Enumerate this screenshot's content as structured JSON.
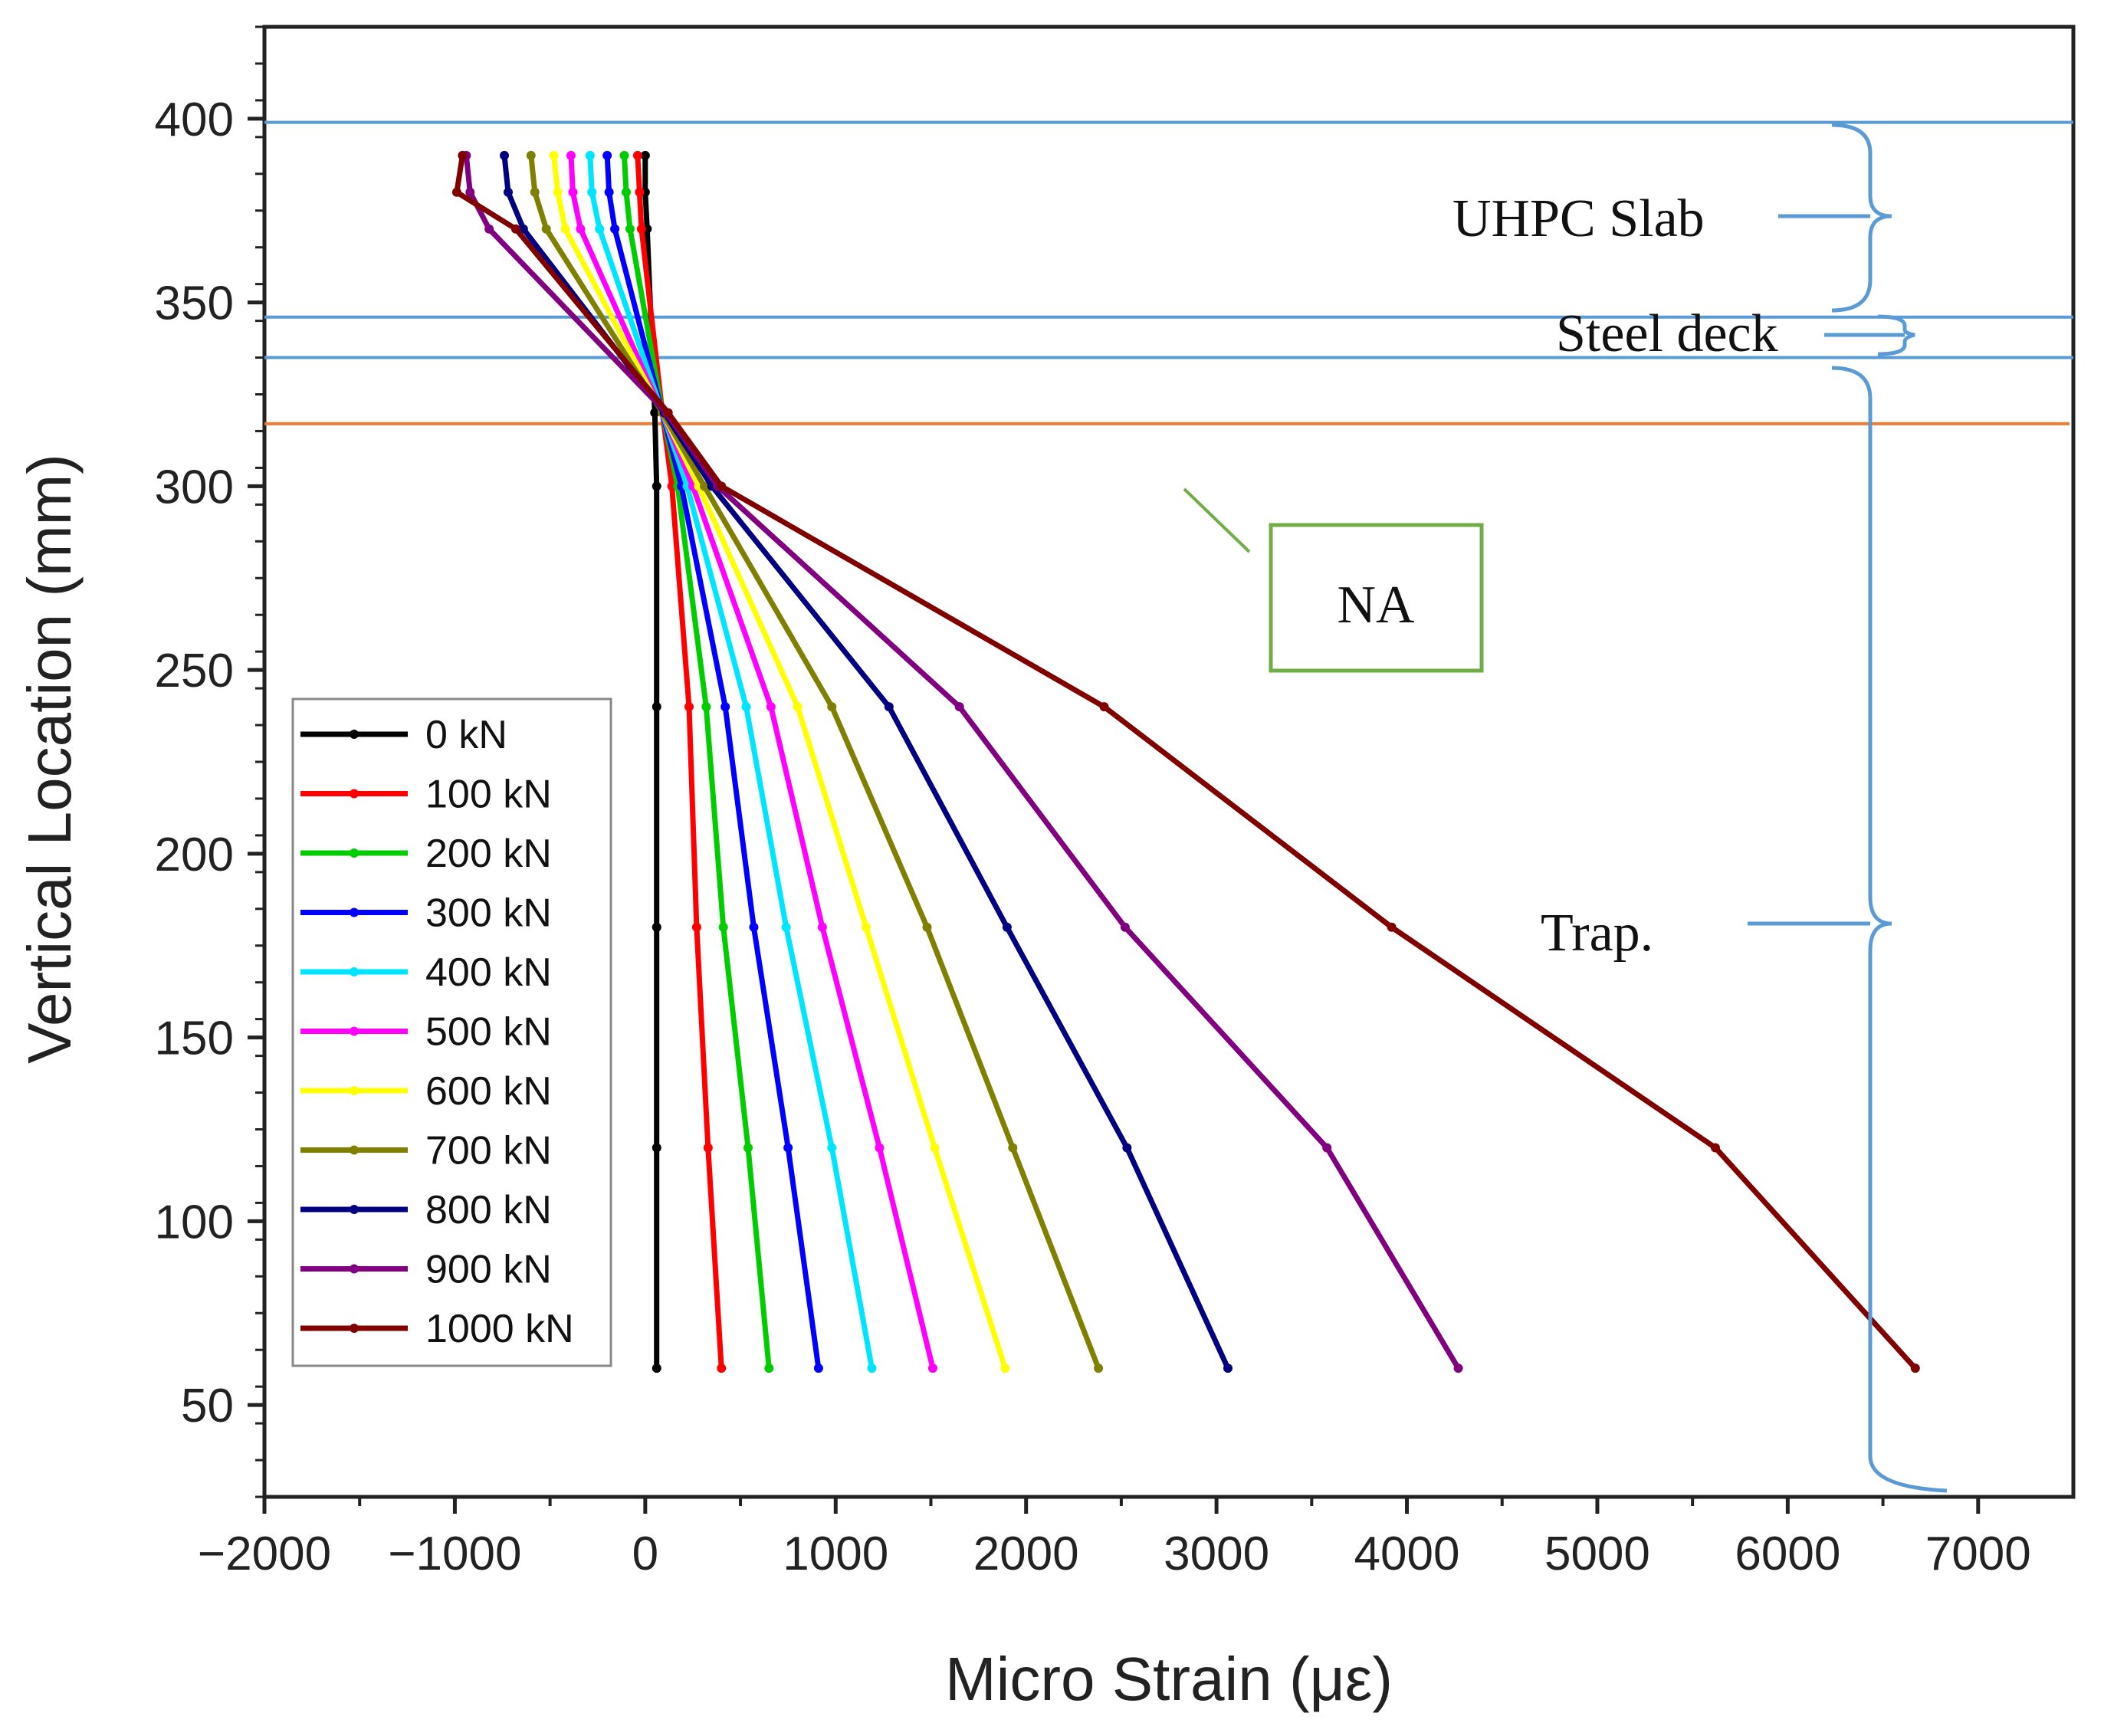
{
  "chart_data": {
    "type": "line",
    "title": "",
    "xlabel": "Micro Strain (με)",
    "ylabel": "Vertical Location (mm)",
    "xlim": [
      -2000,
      7500
    ],
    "ylim": [
      25,
      425
    ],
    "x_ticks": [
      -2000,
      -1000,
      0,
      1000,
      2000,
      3000,
      4000,
      5000,
      6000,
      7000
    ],
    "x_tick_labels": [
      "−2000",
      "−1000",
      "0",
      "1000",
      "2000",
      "3000",
      "4000",
      "5000",
      "6000",
      "7000"
    ],
    "y_ticks": [
      50,
      100,
      150,
      200,
      250,
      300,
      350,
      400
    ],
    "y_tick_labels": [
      "50",
      "100",
      "150",
      "200",
      "250",
      "300",
      "350",
      "400"
    ],
    "legend_position": "lower-left",
    "y_levels": [
      390,
      380,
      370,
      320,
      300,
      240,
      180,
      120,
      60
    ],
    "series": [
      {
        "name": "0 kN",
        "color": "#000000",
        "x": [
          0,
          0,
          10,
          50,
          60,
          60,
          60,
          60,
          60
        ]
      },
      {
        "name": "100 kN",
        "color": "#ff0000",
        "x": [
          -40,
          -30,
          -20,
          90,
          140,
          230,
          270,
          330,
          400
        ]
      },
      {
        "name": "200 kN",
        "color": "#00cc00",
        "x": [
          -110,
          -100,
          -80,
          90,
          170,
          320,
          410,
          540,
          650
        ]
      },
      {
        "name": "300 kN",
        "color": "#0000ff",
        "x": [
          -200,
          -190,
          -160,
          90,
          190,
          420,
          570,
          750,
          910
        ]
      },
      {
        "name": "400 kN",
        "color": "#00e5ff",
        "x": [
          -290,
          -280,
          -240,
          90,
          220,
          530,
          740,
          980,
          1190
        ]
      },
      {
        "name": "500 kN",
        "color": "#ff00ff",
        "x": [
          -390,
          -380,
          -340,
          90,
          250,
          660,
          930,
          1230,
          1510
        ]
      },
      {
        "name": "600 kN",
        "color": "#ffff00",
        "x": [
          -480,
          -460,
          -420,
          90,
          280,
          800,
          1160,
          1520,
          1890
        ]
      },
      {
        "name": "700 kN",
        "color": "#808000",
        "x": [
          -600,
          -580,
          -520,
          90,
          310,
          980,
          1480,
          1930,
          2380
        ]
      },
      {
        "name": "800 kN",
        "color": "#000080",
        "x": [
          -740,
          -720,
          -640,
          100,
          350,
          1280,
          1900,
          2530,
          3060
        ]
      },
      {
        "name": "900 kN",
        "color": "#800080",
        "x": [
          -940,
          -920,
          -820,
          110,
          380,
          1650,
          2520,
          3580,
          4270
        ]
      },
      {
        "name": "1000 kN",
        "color": "#800000",
        "x": [
          -960,
          -990,
          -680,
          120,
          400,
          2410,
          3920,
          5620,
          6670
        ]
      }
    ],
    "annotations": {
      "slab_label": "UHPC Slab",
      "deck_label": "Steel deck",
      "trap_label": "Trap.",
      "na_label": "NA",
      "section_lines_y": [
        399,
        346,
        335
      ],
      "na_line_y": 317,
      "section_line_color": "#5b9bd5",
      "na_line_color": "#ed7d31",
      "na_box_color": "#70ad47"
    }
  }
}
